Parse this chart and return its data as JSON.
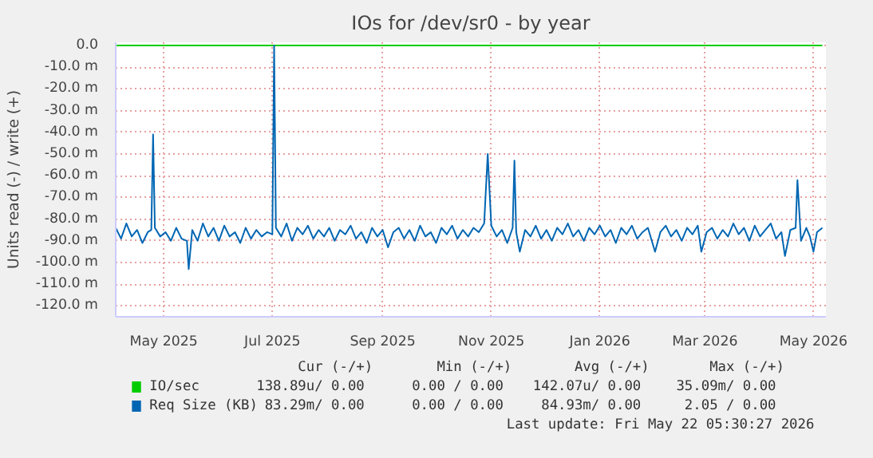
{
  "chart_data": {
    "type": "line",
    "title": "IOs for /dev/sr0 - by year",
    "ylabel": "Units read (-) / write (+)",
    "xlim": [
      "2025-04-04",
      "2026-05-08"
    ],
    "xticks": [
      {
        "value": "2025-05-01",
        "label": "May 2025"
      },
      {
        "value": "2025-07-01",
        "label": "Jul 2025"
      },
      {
        "value": "2025-09-01",
        "label": "Sep 2025"
      },
      {
        "value": "2025-11-01",
        "label": "Nov 2025"
      },
      {
        "value": "2026-01-01",
        "label": "Jan 2026"
      },
      {
        "value": "2026-03-01",
        "label": "Mar 2026"
      },
      {
        "value": "2026-05-01",
        "label": "May 2026"
      }
    ],
    "ylim": [
      -125,
      1.5
    ],
    "yticks": [
      {
        "value": 0,
        "label": "0.0"
      },
      {
        "value": -10,
        "label": "-10.0 m"
      },
      {
        "value": -20,
        "label": "-20.0 m"
      },
      {
        "value": -30,
        "label": "-30.0 m"
      },
      {
        "value": -40,
        "label": "-40.0 m"
      },
      {
        "value": -50,
        "label": "-50.0 m"
      },
      {
        "value": -60,
        "label": "-60.0 m"
      },
      {
        "value": -70,
        "label": "-70.0 m"
      },
      {
        "value": -80,
        "label": "-80.0 m"
      },
      {
        "value": -90,
        "label": "-90.0 m"
      },
      {
        "value": -100,
        "label": "-100.0 m"
      },
      {
        "value": -110,
        "label": "-110.0 m"
      },
      {
        "value": -120,
        "label": "-120.0 m"
      }
    ],
    "grid": true,
    "legend": "bottom",
    "series": [
      {
        "name": "IO/sec",
        "color": "#00cc00",
        "x": [
          "2025-04-04",
          "2026-05-06"
        ],
        "values": [
          0,
          0
        ]
      },
      {
        "name": "Req Size (KB)",
        "color": "#0066b3",
        "x": [
          "2025-04-04",
          "2025-04-07",
          "2025-04-10",
          "2025-04-13",
          "2025-04-16",
          "2025-04-19",
          "2025-04-22",
          "2025-04-24",
          "2025-04-25",
          "2025-04-26",
          "2025-04-29",
          "2025-05-02",
          "2025-05-05",
          "2025-05-08",
          "2025-05-11",
          "2025-05-14",
          "2025-05-15",
          "2025-05-17",
          "2025-05-20",
          "2025-05-23",
          "2025-05-26",
          "2025-05-29",
          "2025-06-01",
          "2025-06-04",
          "2025-06-07",
          "2025-06-10",
          "2025-06-13",
          "2025-06-16",
          "2025-06-19",
          "2025-06-22",
          "2025-06-25",
          "2025-06-28",
          "2025-07-01",
          "2025-07-02",
          "2025-07-03",
          "2025-07-06",
          "2025-07-09",
          "2025-07-12",
          "2025-07-15",
          "2025-07-18",
          "2025-07-21",
          "2025-07-24",
          "2025-07-27",
          "2025-07-30",
          "2025-08-02",
          "2025-08-05",
          "2025-08-08",
          "2025-08-11",
          "2025-08-14",
          "2025-08-17",
          "2025-08-20",
          "2025-08-23",
          "2025-08-26",
          "2025-08-29",
          "2025-09-01",
          "2025-09-04",
          "2025-09-07",
          "2025-09-10",
          "2025-09-13",
          "2025-09-16",
          "2025-09-19",
          "2025-09-22",
          "2025-09-25",
          "2025-09-28",
          "2025-10-01",
          "2025-10-04",
          "2025-10-07",
          "2025-10-10",
          "2025-10-13",
          "2025-10-16",
          "2025-10-19",
          "2025-10-22",
          "2025-10-25",
          "2025-10-28",
          "2025-10-30",
          "2025-11-01",
          "2025-11-04",
          "2025-11-07",
          "2025-11-10",
          "2025-11-13",
          "2025-11-14",
          "2025-11-15",
          "2025-11-17",
          "2025-11-20",
          "2025-11-23",
          "2025-11-26",
          "2025-11-29",
          "2025-12-02",
          "2025-12-05",
          "2025-12-08",
          "2025-12-11",
          "2025-12-14",
          "2025-12-17",
          "2025-12-20",
          "2025-12-23",
          "2025-12-26",
          "2025-12-29",
          "2026-01-01",
          "2026-01-04",
          "2026-01-07",
          "2026-01-10",
          "2026-01-13",
          "2026-01-16",
          "2026-01-19",
          "2026-01-22",
          "2026-01-25",
          "2026-01-28",
          "2026-02-01",
          "2026-02-04",
          "2026-02-07",
          "2026-02-10",
          "2026-02-13",
          "2026-02-16",
          "2026-02-19",
          "2026-02-22",
          "2026-02-25",
          "2026-02-27",
          "2026-03-02",
          "2026-03-05",
          "2026-03-08",
          "2026-03-11",
          "2026-03-14",
          "2026-03-17",
          "2026-03-20",
          "2026-03-23",
          "2026-03-26",
          "2026-03-29",
          "2026-04-01",
          "2026-04-04",
          "2026-04-07",
          "2026-04-10",
          "2026-04-13",
          "2026-04-15",
          "2026-04-18",
          "2026-04-21",
          "2026-04-22",
          "2026-04-24",
          "2026-04-27",
          "2026-04-29",
          "2026-05-01",
          "2026-05-03",
          "2026-05-06"
        ],
        "values": [
          -84,
          -89,
          -82,
          -88,
          -85,
          -91,
          -86,
          -85,
          -41,
          -84,
          -88,
          -86,
          -90,
          -84,
          -89,
          -90,
          -103,
          -85,
          -90,
          -82,
          -88,
          -84,
          -90,
          -83,
          -88,
          -86,
          -91,
          -84,
          -89,
          -85,
          -88,
          -86,
          -87,
          0,
          -84,
          -88,
          -82,
          -90,
          -84,
          -87,
          -83,
          -89,
          -85,
          -88,
          -84,
          -90,
          -85,
          -87,
          -83,
          -89,
          -86,
          -91,
          -84,
          -88,
          -85,
          -93,
          -86,
          -84,
          -89,
          -85,
          -90,
          -83,
          -88,
          -86,
          -91,
          -84,
          -87,
          -83,
          -89,
          -85,
          -88,
          -84,
          -86,
          -82,
          -50,
          -83,
          -88,
          -85,
          -91,
          -84,
          -53,
          -86,
          -95,
          -85,
          -88,
          -83,
          -89,
          -85,
          -90,
          -84,
          -87,
          -82,
          -88,
          -85,
          -90,
          -84,
          -87,
          -83,
          -88,
          -85,
          -91,
          -84,
          -87,
          -83,
          -89,
          -86,
          -84,
          -95,
          -86,
          -83,
          -88,
          -85,
          -90,
          -84,
          -87,
          -83,
          -95,
          -86,
          -84,
          -89,
          -85,
          -88,
          -82,
          -87,
          -84,
          -90,
          -83,
          -88,
          -85,
          -82,
          -89,
          -86,
          -97,
          -85,
          -84,
          -62,
          -90,
          -84,
          -88,
          -95,
          -86,
          -84
        ]
      }
    ],
    "annotations": [
      "Cur (-/+)",
      "Min (-/+)",
      "Avg (-/+)",
      "Max (-/+)",
      "138.89u/  0.00",
      "0.00 /  0.00",
      "142.07u/  0.00",
      "35.09m/  0.00",
      "83.29m/  0.00",
      "0.00 /  0.00",
      "84.93m/  0.00",
      "2.05 /  0.00",
      "Last update: Fri May 22 05:30:27 2026"
    ]
  }
}
